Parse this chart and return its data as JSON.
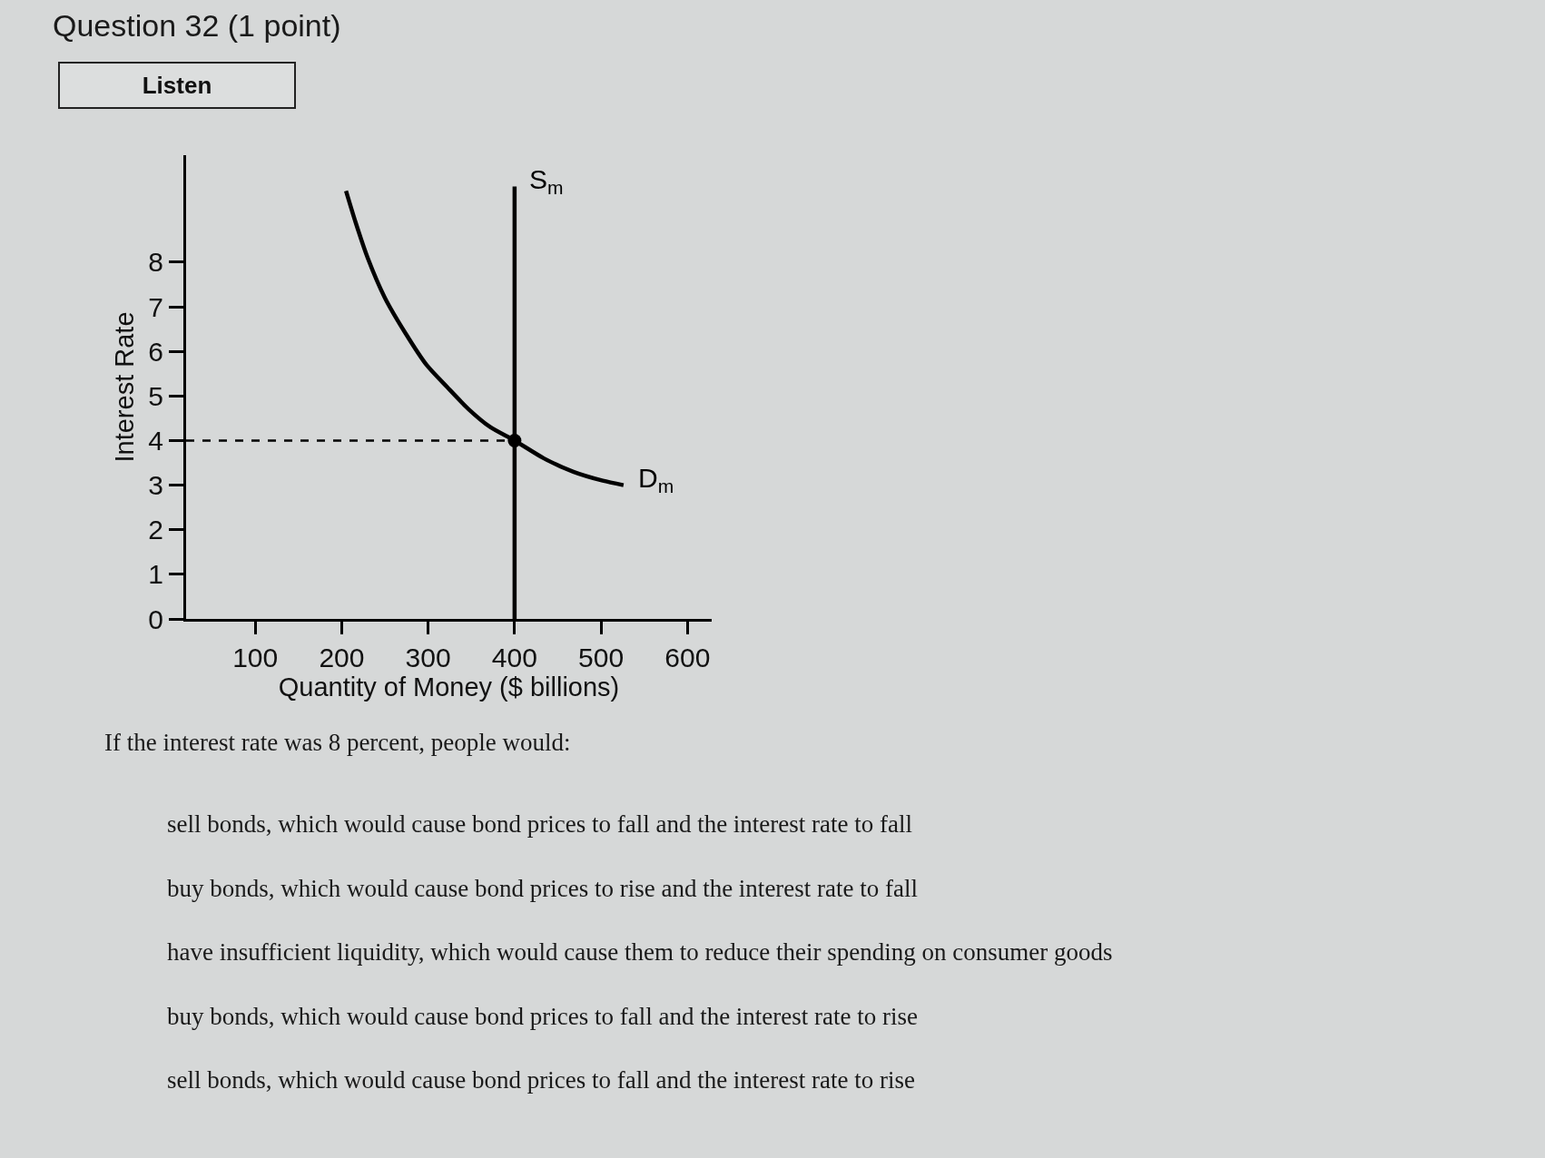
{
  "chart_data": {
    "type": "line",
    "title": "Question 32 (1 point)",
    "xlabel": "Quantity of Money ($ billions)",
    "ylabel": "Interest Rate",
    "annotations": [
      "Listen",
      "If the interest rate was 8 percent, people would:",
      "sell bonds, which would cause bond prices to fall and the interest rate to fall",
      "buy bonds, which would cause bond prices to rise and the interest rate to fall",
      "have insufficient liquidity, which would cause them to reduce their spending on consumer goods",
      "buy bonds, which would cause bond prices to fall and the interest rate to rise",
      "sell bonds, which would cause bond prices to fall and the interest rate to rise"
    ],
    "xlim": [
      20,
      628
    ],
    "xticks": [
      100,
      200,
      300,
      400,
      500,
      600
    ],
    "ylim": [
      0,
      10.4
    ],
    "yticks": [
      0,
      1,
      2,
      3,
      4,
      5,
      6,
      7,
      8
    ],
    "series": [
      {
        "name": "D$_{m}$",
        "color": "#000000",
        "x": [
          205,
          216,
          230,
          250,
          274,
          298,
          322,
          347,
          372,
          400,
          434,
          468,
          502,
          526
        ],
        "values": [
          9.6,
          8.9,
          8.1,
          7.2,
          6.4,
          5.7,
          5.2,
          4.7,
          4.3,
          4.0,
          3.6,
          3.3,
          3.1,
          3.0
        ]
      },
      {
        "name": "S$_{m}$",
        "color": "#000000",
        "x": [
          400,
          400
        ],
        "values": [
          0,
          9.7
        ]
      },
      {
        "line_style": "dashed",
        "color": "#000000",
        "x": [
          20,
          400
        ],
        "values": [
          4,
          4
        ]
      },
      {
        "type": "scatter",
        "marker": "circle",
        "color": "#000000",
        "x": [
          400
        ],
        "values": [
          4
        ]
      }
    ]
  }
}
